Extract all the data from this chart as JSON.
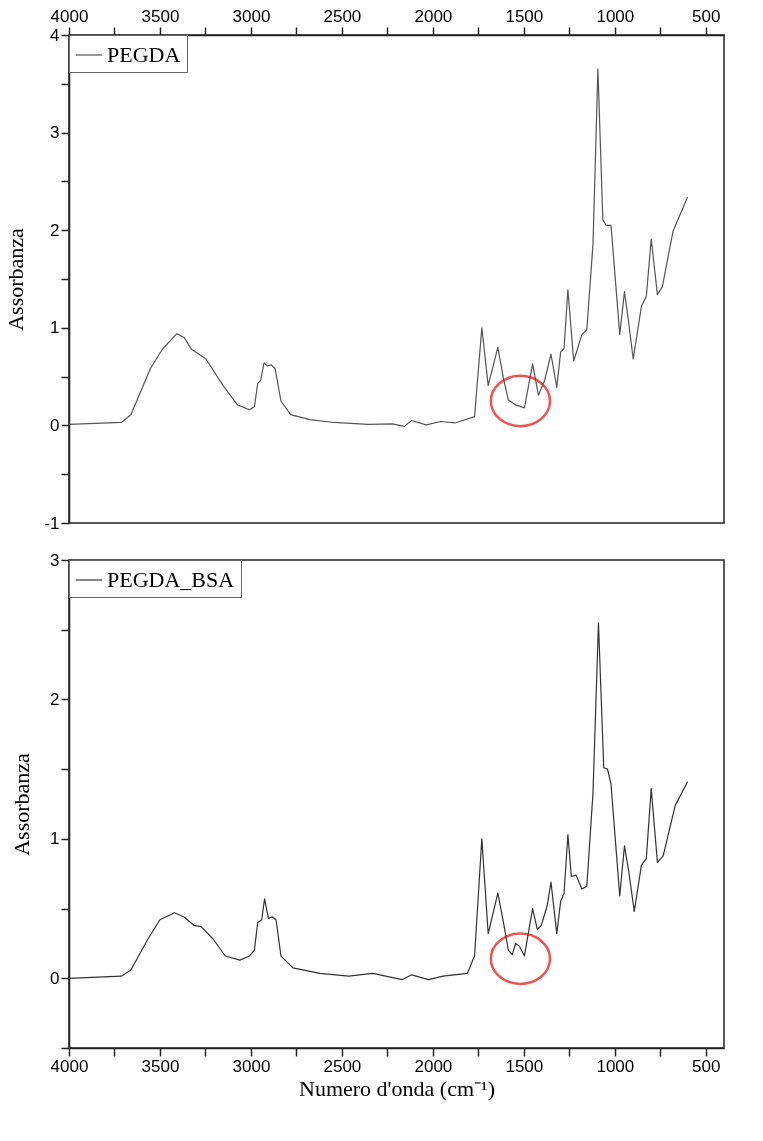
{
  "chart_data": [
    {
      "type": "line",
      "xlim": [
        4000,
        400
      ],
      "xticks": [
        4000,
        {
          "value": 3750,
          "label": null
        },
        3500,
        {
          "value": 3250,
          "label": null
        },
        3000,
        {
          "value": 2750,
          "label": null
        },
        2500,
        {
          "value": 2250,
          "label": null
        },
        2000,
        {
          "value": 1750,
          "label": null
        },
        1500,
        {
          "value": 1250,
          "label": null
        },
        1000,
        {
          "value": 750,
          "label": null
        },
        500
      ],
      "ylim": [
        -1,
        4
      ],
      "yticks": [
        -1,
        {
          "value": -0.5,
          "label": null
        },
        0,
        {
          "value": 0.5,
          "label": null
        },
        1,
        {
          "value": 1.5,
          "label": null
        },
        2,
        {
          "value": 2.5,
          "label": null
        },
        3,
        {
          "value": 3.5,
          "label": null
        },
        4
      ],
      "ylabel": "Assorbanza",
      "legend": "top left",
      "grid": false,
      "series": [
        {
          "name": "PEGDA",
          "color": "#555555",
          "x": [
            4000,
            3713,
            3660,
            3553,
            3487,
            3407,
            3367,
            3327,
            3247,
            3154,
            3074,
            3008,
            2981,
            2963,
            2947,
            2928,
            2910,
            2888,
            2867,
            2835,
            2782,
            2676,
            2543,
            2357,
            2223,
            2157,
            2117,
            2037,
            1957,
            1878,
            1771,
            1731,
            1696,
            1643,
            1612,
            1585,
            1545,
            1497,
            1452,
            1420,
            1386,
            1351,
            1319,
            1298,
            1279,
            1258,
            1226,
            1181,
            1154,
            1120,
            1093,
            1066,
            1048,
            1021,
            973,
            947,
            925,
            899,
            854,
            827,
            800,
            766,
            739,
            680,
            600
          ],
          "values": [
            0.01,
            0.03,
            0.11,
            0.58,
            0.78,
            0.94,
            0.9,
            0.78,
            0.68,
            0.41,
            0.21,
            0.16,
            0.19,
            0.43,
            0.46,
            0.64,
            0.61,
            0.62,
            0.58,
            0.25,
            0.11,
            0.06,
            0.03,
            0.01,
            0.015,
            -0.01,
            0.05,
            0.005,
            0.04,
            0.025,
            0.09,
            1.0,
            0.41,
            0.8,
            0.48,
            0.26,
            0.21,
            0.18,
            0.63,
            0.31,
            0.46,
            0.73,
            0.39,
            0.75,
            0.79,
            1.39,
            0.66,
            0.93,
            0.98,
            1.86,
            3.65,
            2.11,
            2.05,
            2.05,
            0.93,
            1.37,
            1.07,
            0.68,
            1.22,
            1.32,
            1.91,
            1.34,
            1.42,
            1.99,
            2.34
          ]
        }
      ]
    },
    {
      "type": "line",
      "xlim": [
        4000,
        400
      ],
      "xticks": [
        4000,
        {
          "value": 3750,
          "label": null
        },
        3500,
        {
          "value": 3250,
          "label": null
        },
        3000,
        {
          "value": 2750,
          "label": null
        },
        2500,
        {
          "value": 2250,
          "label": null
        },
        2000,
        {
          "value": 1750,
          "label": null
        },
        1500,
        {
          "value": 1250,
          "label": null
        },
        1000,
        {
          "value": 750,
          "label": null
        },
        500
      ],
      "ylim": [
        -0.5,
        3
      ],
      "yticks": [
        {
          "value": -0.5,
          "label": null
        },
        0,
        {
          "value": 0.5,
          "label": null
        },
        1,
        {
          "value": 1.5,
          "label": null
        },
        2,
        {
          "value": 2.5,
          "label": null
        },
        3
      ],
      "xlabel": "Numero d'onda (cm⁻¹)",
      "ylabel": "Assorbanza",
      "legend": "top left",
      "grid": false,
      "series": [
        {
          "name": "PEGDA_BSA",
          "color": "#333333",
          "x": [
            4000,
            3713,
            3660,
            3567,
            3500,
            3420,
            3367,
            3314,
            3274,
            3207,
            3141,
            3061,
            3008,
            2981,
            2963,
            2941,
            2925,
            2904,
            2883,
            2862,
            2835,
            2769,
            2622,
            2463,
            2330,
            2170,
            2117,
            2024,
            1944,
            1811,
            1771,
            1731,
            1696,
            1643,
            1612,
            1585,
            1564,
            1545,
            1524,
            1497,
            1452,
            1426,
            1404,
            1372,
            1351,
            1319,
            1298,
            1279,
            1258,
            1239,
            1213,
            1181,
            1154,
            1120,
            1090,
            1061,
            1040,
            1021,
            973,
            947,
            925,
            893,
            854,
            827,
            800,
            766,
            734,
            668,
            600
          ],
          "values": [
            0.0,
            0.015,
            0.06,
            0.28,
            0.42,
            0.47,
            0.44,
            0.38,
            0.37,
            0.28,
            0.16,
            0.13,
            0.16,
            0.2,
            0.4,
            0.42,
            0.57,
            0.43,
            0.44,
            0.42,
            0.16,
            0.075,
            0.035,
            0.015,
            0.035,
            -0.01,
            0.025,
            -0.01,
            0.015,
            0.035,
            0.16,
            1.0,
            0.32,
            0.61,
            0.4,
            0.2,
            0.17,
            0.25,
            0.23,
            0.16,
            0.5,
            0.35,
            0.38,
            0.52,
            0.69,
            0.32,
            0.55,
            0.61,
            1.03,
            0.73,
            0.74,
            0.64,
            0.66,
            1.33,
            2.55,
            1.51,
            1.5,
            1.39,
            0.59,
            0.95,
            0.78,
            0.48,
            0.81,
            0.86,
            1.36,
            0.83,
            0.88,
            1.24,
            1.41
          ]
        }
      ]
    }
  ]
}
